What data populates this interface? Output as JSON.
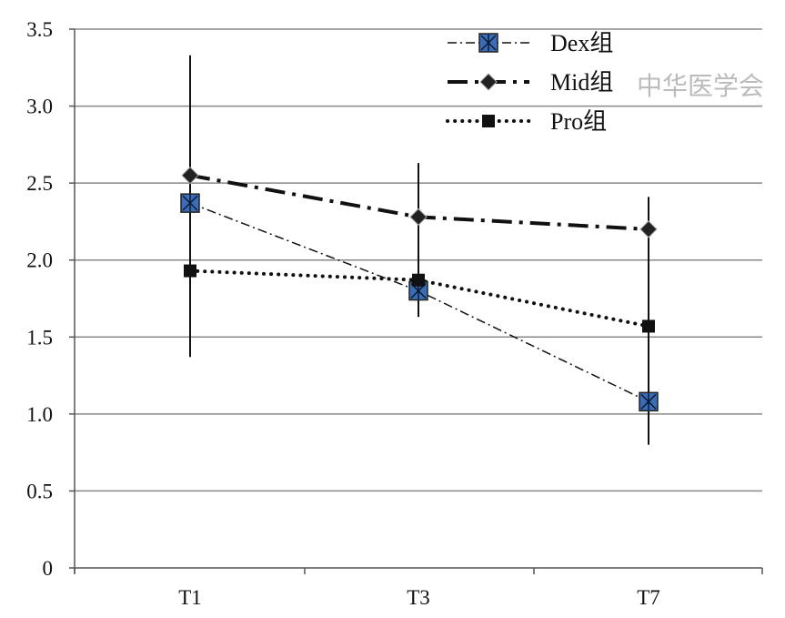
{
  "chart_data": {
    "type": "line",
    "title": "",
    "xlabel": "",
    "ylabel": "",
    "categories": [
      "T1",
      "T3",
      "T7"
    ],
    "ylim": [
      0,
      3.5
    ],
    "yticks": [
      "0",
      "0.5",
      "1.0",
      "1.5",
      "2.0",
      "2.5",
      "3.0",
      "3.5"
    ],
    "ytick_values": [
      0,
      0.5,
      1.0,
      1.5,
      2.0,
      2.5,
      3.0,
      3.5
    ],
    "grid": true,
    "legend_position": "top-right",
    "series": [
      {
        "name": "Dex组",
        "values": [
          2.37,
          1.8,
          1.08
        ],
        "line": "dash-dot-thin",
        "marker": "square-x",
        "color": "#3a6db5"
      },
      {
        "name": "Mid组",
        "values": [
          2.55,
          2.28,
          2.2
        ],
        "line": "dash-dot-thick",
        "marker": "diamond",
        "color": "#111111"
      },
      {
        "name": "Pro组",
        "values": [
          1.93,
          1.87,
          1.57
        ],
        "line": "dotted",
        "marker": "square",
        "color": "#111111"
      }
    ],
    "error_ranges": [
      {
        "category": "T1",
        "low": 1.37,
        "high": 3.33
      },
      {
        "category": "T3",
        "low": 1.63,
        "high": 2.63
      },
      {
        "category": "T7",
        "low": 0.8,
        "high": 2.41
      }
    ],
    "watermark": "中华医学会"
  }
}
